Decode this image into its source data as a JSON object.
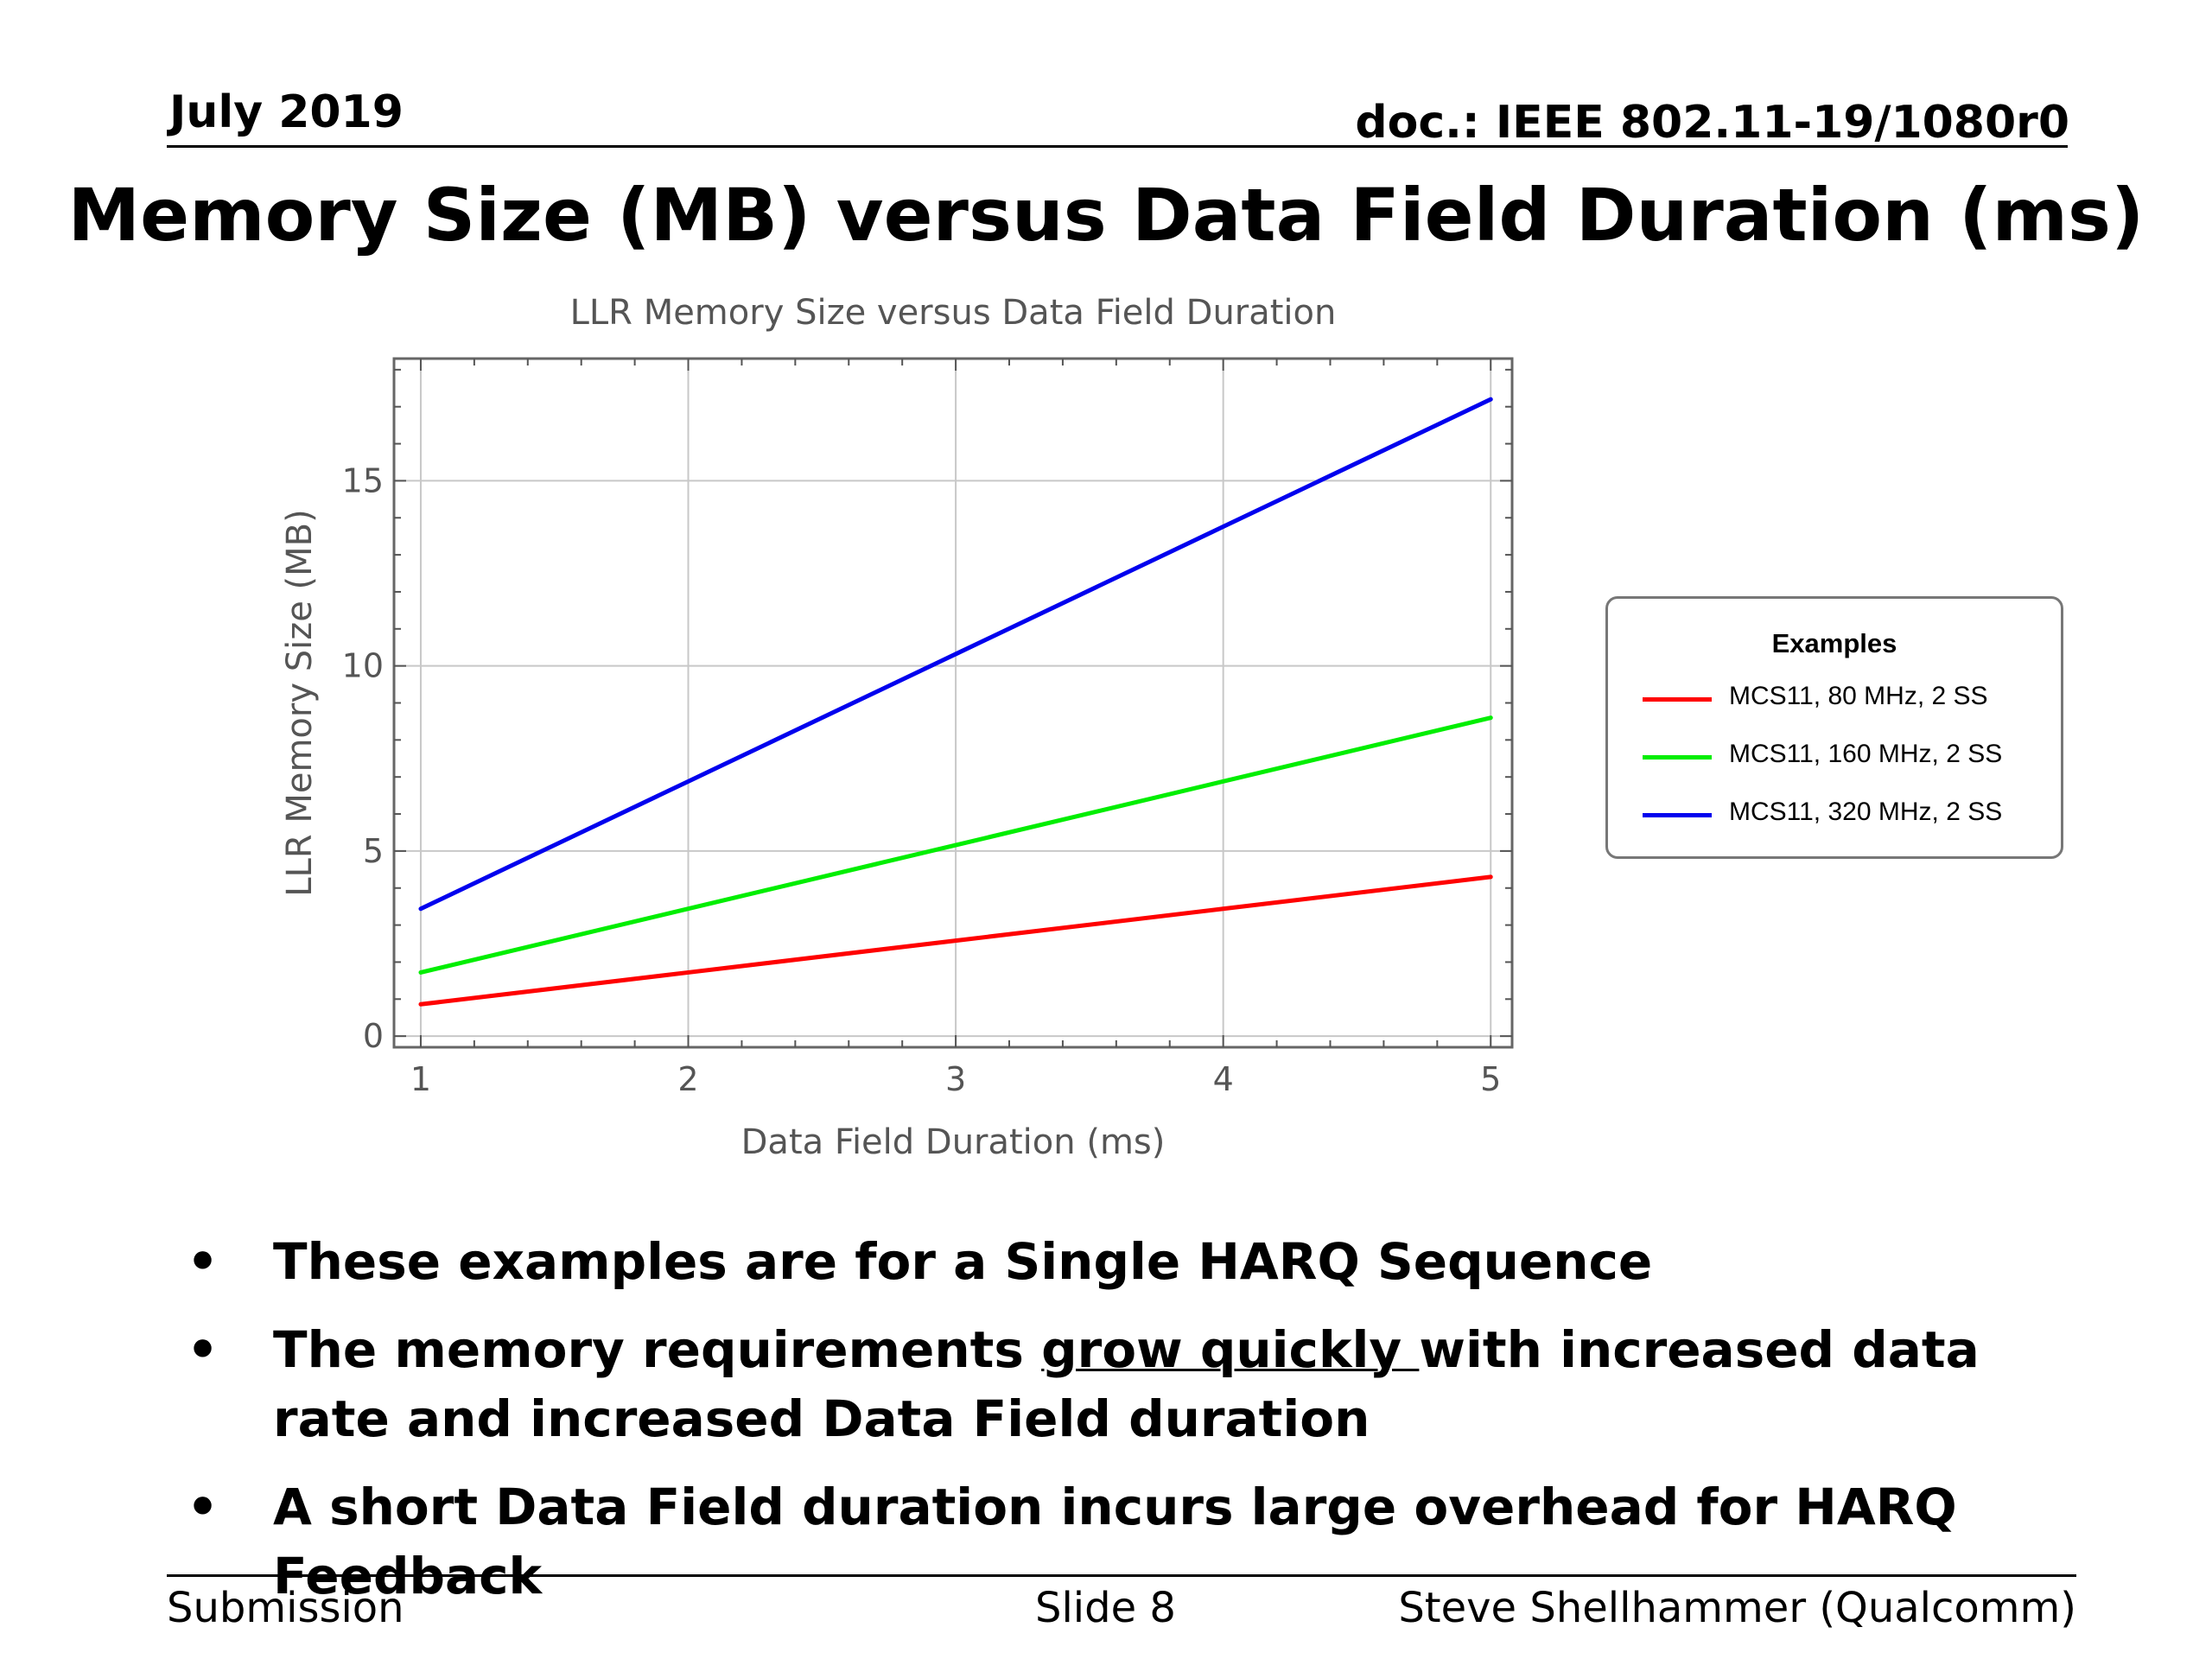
{
  "header": {
    "date": "July 2019",
    "doc": "doc.: IEEE 802.11-19/1080r0"
  },
  "slide_title": "Memory Size (MB) versus Data Field Duration (ms)",
  "chart_data": {
    "type": "line",
    "title": "LLR Memory Size versus Data Field Duration",
    "xlabel": "Data Field Duration (ms)",
    "ylabel": "LLR Memory Size (MB)",
    "xlim": [
      0.9,
      5.08
    ],
    "ylim": [
      -0.3,
      18.3
    ],
    "xticks": [
      1,
      2,
      3,
      4,
      5
    ],
    "yticks": [
      0,
      5,
      10,
      15
    ],
    "grid": true,
    "legend_title": "Examples",
    "legend_position": "right, outside plot",
    "series": [
      {
        "name": "MCS11, 80 MHz, 2 SS",
        "color": "#ff0000",
        "x": [
          1,
          2,
          3,
          4,
          5
        ],
        "y": [
          0.86,
          1.72,
          2.58,
          3.44,
          4.3
        ]
      },
      {
        "name": "MCS11, 160 MHz, 2 SS",
        "color": "#00ee00",
        "x": [
          1,
          2,
          3,
          4,
          5
        ],
        "y": [
          1.72,
          3.44,
          5.16,
          6.88,
          8.6
        ]
      },
      {
        "name": "MCS11, 320 MHz, 2 SS",
        "color": "#0000ee",
        "x": [
          1,
          2,
          3,
          4,
          5
        ],
        "y": [
          3.44,
          6.88,
          10.32,
          13.76,
          17.2
        ]
      }
    ]
  },
  "bullets": {
    "b1": "These examples are for a Single HARQ Sequence",
    "b2_pre": "The memory requirements ",
    "b2_underlined": "grow quickly ",
    "b2_post": "with increased data rate and increased Data Field duration",
    "b3": "A short Data Field duration incurs large overhead for HARQ Feedback"
  },
  "footer": {
    "left": "Submission",
    "center": "Slide 8",
    "right": "Steve Shellhammer (Qualcomm)"
  }
}
